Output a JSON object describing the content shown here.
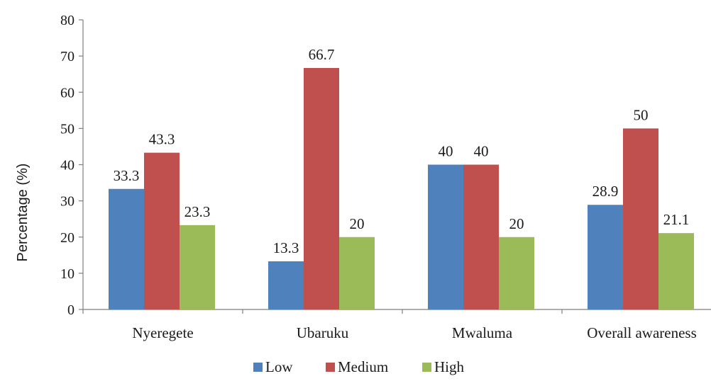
{
  "colors": {
    "Low": "#4f81bd",
    "Medium": "#c0504d",
    "High": "#9bbb59",
    "axis": "#7f7f7f",
    "text": "#1a1a1a"
  },
  "chart_data": {
    "type": "bar",
    "title": "",
    "xlabel": "",
    "ylabel": "Percentage (%)",
    "ylim": [
      0,
      80
    ],
    "yticks": [
      0,
      10,
      20,
      30,
      40,
      50,
      60,
      70,
      80
    ],
    "grid": false,
    "legend_position": "bottom",
    "categories": [
      "Nyeregete",
      "Ubaruku",
      "Mwaluma",
      "Overall awareness"
    ],
    "series": [
      {
        "name": "Low",
        "values": [
          33.3,
          13.3,
          40,
          28.9
        ],
        "labels": [
          "33.3",
          "13.3",
          "40",
          "28.9"
        ]
      },
      {
        "name": "Medium",
        "values": [
          43.3,
          66.7,
          40,
          50
        ],
        "labels": [
          "43.3",
          "66.7",
          "40",
          "50"
        ]
      },
      {
        "name": "High",
        "values": [
          23.3,
          20,
          20,
          21.1
        ],
        "labels": [
          "23.3",
          "20",
          "20",
          "21.1"
        ]
      }
    ]
  }
}
